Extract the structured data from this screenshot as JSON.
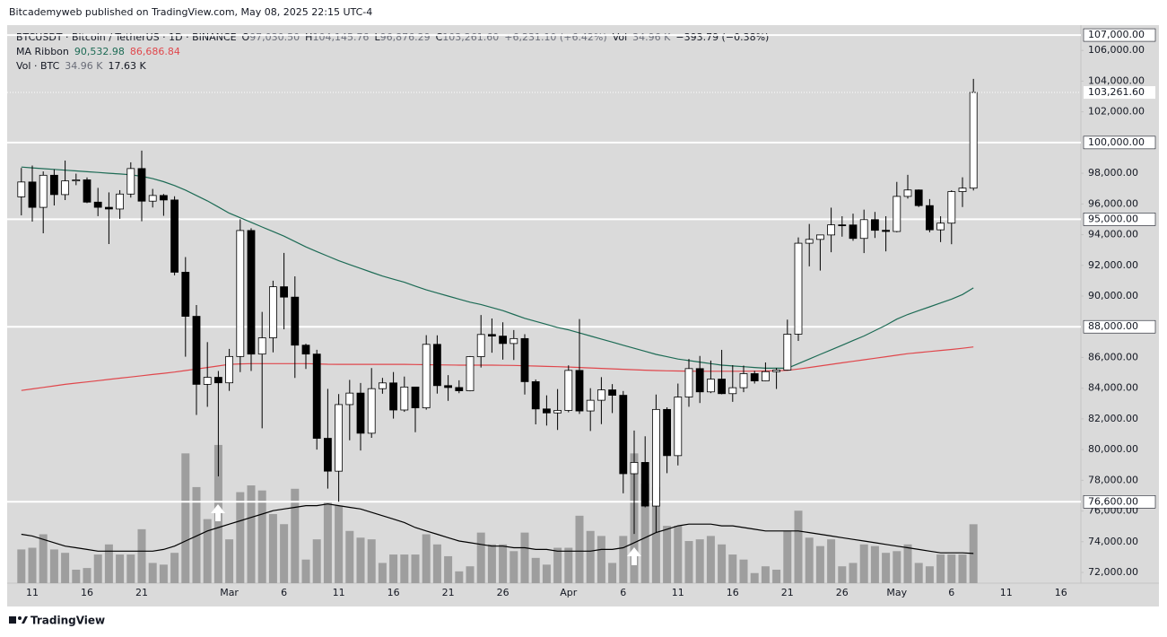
{
  "header": {
    "publisher": "Bitcademyweb published on TradingView.com, May 08, 2025 22:15 UTC-4",
    "brand": "TradingView"
  },
  "chart_data": {
    "type": "candlestick",
    "legend": [
      [
        {
          "text": "BTCUSDT · Bitcoin / TetherUS · 1D · BINANCE",
          "color": "#131722"
        },
        {
          "text": "O",
          "color": "#131722"
        },
        {
          "text": "97,030.50",
          "color": "#6a6d78"
        },
        {
          "text": "H",
          "color": "#131722"
        },
        {
          "text": "104,145.76",
          "color": "#6a6d78"
        },
        {
          "text": "L",
          "color": "#131722"
        },
        {
          "text": "96,876.29",
          "color": "#6a6d78"
        },
        {
          "text": "C",
          "color": "#131722"
        },
        {
          "text": "103,261.60",
          "color": "#6a6d78"
        },
        {
          "text": "+6,231.10 (+6.42%)",
          "color": "#6a6d78"
        },
        {
          "text": "Vol",
          "color": "#131722"
        },
        {
          "text": "34.96 K",
          "color": "#6a6d78"
        },
        {
          "text": "−393.79 (−0.38%)",
          "color": "#131722"
        }
      ],
      [
        {
          "text": "MA Ribbon",
          "color": "#131722"
        },
        {
          "text": "90,532.98",
          "color": "#1d6b55"
        },
        {
          "text": "86,686.84",
          "color": "#e0474c"
        }
      ],
      [
        {
          "text": "Vol · BTC",
          "color": "#131722"
        },
        {
          "text": "34.96 K",
          "color": "#6a6d78"
        },
        {
          "text": "17.63 K",
          "color": "#131722"
        }
      ]
    ],
    "categories": [
      null,
      "11",
      null,
      null,
      null,
      null,
      "16",
      null,
      null,
      null,
      null,
      "21",
      null,
      null,
      null,
      null,
      null,
      null,
      null,
      "Mar",
      null,
      null,
      null,
      null,
      "6",
      null,
      null,
      null,
      null,
      "11",
      null,
      null,
      null,
      null,
      "16",
      null,
      null,
      null,
      null,
      "21",
      null,
      null,
      null,
      null,
      "26",
      null,
      null,
      null,
      null,
      null,
      "Apr",
      null,
      null,
      null,
      null,
      "6",
      null,
      null,
      null,
      null,
      "11",
      null,
      null,
      null,
      null,
      "16",
      null,
      null,
      null,
      null,
      "21",
      null,
      null,
      null,
      null,
      "26",
      null,
      null,
      null,
      null,
      "May",
      null,
      null,
      null,
      null,
      "6",
      null,
      null,
      null,
      null,
      "11",
      null,
      null,
      null,
      null,
      "16",
      null
    ],
    "open": [
      96462,
      97430,
      95778,
      97869,
      96608,
      97500,
      97569,
      96118,
      95780,
      95671,
      96644,
      98305,
      96181,
      96551,
      96258,
      91552,
      88680,
      84250,
      84708,
      84349,
      86064,
      94270,
      86221,
      87281,
      90606,
      89931,
      86801,
      86222,
      80735,
      78595,
      82932,
      83681,
      81066,
      83969,
      84343,
      82579,
      84076,
      82719,
      86855,
      84167,
      84043,
      83832,
      86054,
      87498,
      87392,
      86909,
      87232,
      84424,
      82648,
      82389,
      82550,
      85158,
      82516,
      83214,
      83890,
      83537,
      78430,
      79164,
      76322,
      82615,
      79607,
      83423,
      85276,
      83760,
      84592,
      83643,
      84031,
      84947,
      84474,
      85077,
      85180,
      87517,
      93442,
      93691,
      93980,
      94638,
      94631,
      93755,
      94980,
      94284,
      94207,
      96492,
      96910,
      95891,
      94315,
      94749,
      96803,
      97030.5,
      null,
      null,
      null,
      null,
      null,
      null,
      null,
      null,
      null
    ],
    "high": [
      98345,
      98500,
      98119,
      98249,
      98826,
      97972,
      97725,
      97046,
      96753,
      96899,
      98711,
      99475,
      96980,
      96650,
      96500,
      92540,
      89414,
      87000,
      85120,
      86558,
      95000,
      94416,
      88968,
      91000,
      92810,
      91283,
      86897,
      86500,
      83955,
      83617,
      84539,
      84336,
      85310,
      84672,
      85051,
      84757,
      84076,
      87453,
      87443,
      84850,
      84513,
      86094,
      88765,
      88540,
      88292,
      87786,
      87515,
      84568,
      83534,
      83943,
      85487,
      88500,
      83999,
      84720,
      84266,
      83817,
      81243,
      80867,
      83588,
      82753,
      84300,
      85905,
      86100,
      85799,
      86496,
      85500,
      85470,
      85132,
      85677,
      85320,
      88465,
      93817,
      94696,
      94000,
      95758,
      95199,
      95369,
      95630,
      95480,
      95200,
      97437,
      97895,
      96943,
      96318,
      95199,
      96888,
      97732,
      104145.76,
      null,
      null,
      null,
      null,
      null,
      null,
      null,
      null,
      null
    ],
    "low": [
      95256,
      94850,
      94088,
      95900,
      96252,
      97223,
      96055,
      95205,
      93388,
      95029,
      96415,
      94871,
      95770,
      95227,
      91350,
      86050,
      82256,
      82786,
      78258,
      83824,
      85050,
      85117,
      81390,
      86334,
      87836,
      84667,
      85248,
      80000,
      77459,
      76606,
      80607,
      79939,
      80766,
      83639,
      82018,
      82457,
      81134,
      82600,
      83647,
      83175,
      83674,
      83795,
      85346,
      86310,
      85861,
      85837,
      83585,
      81644,
      81565,
      81279,
      82429,
      82320,
      81211,
      81659,
      82379,
      77153,
      74508,
      76239,
      74620,
      78464,
      78969,
      82792,
      83034,
      83678,
      83600,
      83111,
      83736,
      84303,
      84446,
      83949,
      85145,
      87076,
      91935,
      91660,
      92855,
      93870,
      93602,
      92800,
      93784,
      92910,
      94153,
      96350,
      95800,
      94153,
      93514,
      93377,
      95800,
      96876.29,
      null,
      null,
      null,
      null,
      null,
      null,
      null,
      null,
      null
    ],
    "close": [
      97430,
      95778,
      97869,
      96608,
      97500,
      97569,
      96118,
      95780,
      95671,
      96644,
      98305,
      96181,
      96551,
      96258,
      91552,
      88680,
      84250,
      84708,
      84349,
      86064,
      94270,
      86220,
      87281,
      90606,
      89931,
      86802,
      86222,
      80734,
      78595,
      82932,
      83680,
      81066,
      83969,
      84343,
      82579,
      84076,
      82719,
      86855,
      84167,
      84043,
      83832,
      86054,
      87498,
      87392,
      86909,
      87232,
      84424,
      82648,
      82389,
      82550,
      85158,
      82516,
      83213,
      83889,
      83537,
      78430,
      79164,
      76323,
      82615,
      79607,
      83423,
      85276,
      83760,
      84591,
      83643,
      84030,
      84947,
      84474,
      85077,
      85180,
      87516,
      93442,
      93691,
      93980,
      94638,
      94630,
      93754,
      94979,
      94284,
      94207,
      96492,
      96910,
      95891,
      94315,
      94749,
      96803,
      97030,
      103261.6,
      null,
      null,
      null,
      null,
      null,
      null,
      null,
      null,
      null
    ],
    "volume": [
      20,
      21,
      29,
      20,
      18,
      8,
      9,
      17,
      23,
      17,
      17,
      32,
      12,
      11,
      18,
      77,
      57,
      38,
      82,
      26,
      54,
      58,
      55,
      41,
      35,
      56,
      14,
      26,
      48,
      46,
      31,
      27,
      26,
      12,
      17,
      17,
      17,
      29,
      23,
      16,
      7,
      10,
      30,
      23,
      23,
      19,
      30,
      15,
      11,
      21,
      21,
      40,
      31,
      28,
      12,
      28,
      77,
      59,
      57,
      34,
      34,
      25,
      26,
      28,
      23,
      17,
      14,
      6,
      10,
      8,
      31,
      43,
      27,
      22,
      26,
      10,
      12,
      23,
      22,
      18,
      19,
      23,
      12,
      10,
      17,
      17,
      17,
      34.96,
      null,
      null,
      null,
      null,
      null,
      null,
      null,
      null,
      null
    ],
    "volume_ma": {
      "color": "#000000",
      "values": [
        29,
        28,
        26,
        24,
        22,
        21,
        20,
        19,
        19,
        19,
        19,
        19,
        19,
        20,
        22,
        25,
        28,
        31,
        33,
        35,
        37,
        39,
        41,
        43,
        44,
        45,
        46,
        46,
        47,
        46,
        45,
        44,
        42,
        40,
        38,
        36,
        33,
        31,
        29,
        27,
        25,
        24,
        23,
        22,
        22,
        21,
        21,
        20,
        20,
        19,
        19,
        19,
        19,
        20,
        20,
        21,
        24,
        27,
        30,
        32,
        34,
        35,
        35,
        35,
        34,
        34,
        33,
        32,
        31,
        31,
        31,
        31,
        30,
        29,
        28,
        27,
        26,
        25,
        24,
        23,
        22,
        21,
        20,
        19,
        18,
        18,
        18,
        17.63,
        null,
        null,
        null,
        null,
        null,
        null,
        null,
        null,
        null
      ]
    },
    "ma_lines": [
      {
        "color": "#1d6b55",
        "values": [
          98400,
          98350,
          98300,
          98250,
          98200,
          98150,
          98100,
          98050,
          98000,
          97950,
          97900,
          97800,
          97650,
          97450,
          97200,
          96900,
          96550,
          96200,
          95800,
          95400,
          95100,
          94800,
          94500,
          94200,
          93900,
          93550,
          93200,
          92900,
          92600,
          92300,
          92050,
          91800,
          91550,
          91300,
          91100,
          90900,
          90650,
          90400,
          90200,
          90000,
          89800,
          89600,
          89450,
          89250,
          89050,
          88800,
          88550,
          88350,
          88150,
          87950,
          87800,
          87600,
          87400,
          87200,
          87000,
          86800,
          86600,
          86400,
          86200,
          86050,
          85900,
          85800,
          85700,
          85600,
          85500,
          85450,
          85400,
          85350,
          85300,
          85300,
          85300,
          85600,
          85900,
          86200,
          86500,
          86800,
          87100,
          87400,
          87750,
          88100,
          88500,
          88800,
          89050,
          89300,
          89550,
          89800,
          90100,
          90532.98,
          null,
          null,
          null,
          null,
          null,
          null,
          null,
          null,
          null
        ]
      },
      {
        "color": "#e0474c",
        "values": [
          83850,
          83950,
          84050,
          84150,
          84250,
          84330,
          84410,
          84490,
          84570,
          84650,
          84730,
          84810,
          84890,
          84970,
          85050,
          85150,
          85250,
          85350,
          85450,
          85550,
          85580,
          85600,
          85600,
          85600,
          85600,
          85600,
          85600,
          85580,
          85560,
          85550,
          85550,
          85550,
          85550,
          85550,
          85550,
          85550,
          85540,
          85530,
          85520,
          85510,
          85500,
          85500,
          85500,
          85500,
          85490,
          85480,
          85460,
          85440,
          85420,
          85400,
          85380,
          85350,
          85320,
          85290,
          85260,
          85230,
          85200,
          85170,
          85150,
          85130,
          85120,
          85110,
          85100,
          85100,
          85100,
          85100,
          85100,
          85110,
          85120,
          85140,
          85160,
          85250,
          85350,
          85450,
          85550,
          85650,
          85750,
          85850,
          85950,
          86050,
          86150,
          86250,
          86320,
          86390,
          86460,
          86520,
          86600,
          86686.84,
          null,
          null,
          null,
          null,
          null,
          null,
          null,
          null,
          null
        ]
      }
    ],
    "up_color": "#ffffff",
    "down_color": "#000000",
    "wick_color": "#000000",
    "volume_color": "#9e9e9e",
    "ylim": [
      71300,
      107530
    ],
    "volume_ylim": [
      0,
      330
    ],
    "yticks": [
      {
        "value": 72000,
        "label": "72,000.00"
      },
      {
        "value": 74000,
        "label": "74,000.00"
      },
      {
        "value": 76000,
        "label": "76,000.00"
      },
      {
        "value": 78000,
        "label": "78,000.00"
      },
      {
        "value": 80000,
        "label": "80,000.00"
      },
      {
        "value": 82000,
        "label": "82,000.00"
      },
      {
        "value": 84000,
        "label": "84,000.00"
      },
      {
        "value": 86000,
        "label": "86,000.00"
      },
      {
        "value": 90000,
        "label": "90,000.00"
      },
      {
        "value": 92000,
        "label": "92,000.00"
      },
      {
        "value": 94000,
        "label": "94,000.00"
      },
      {
        "value": 96000,
        "label": "96,000.00"
      },
      {
        "value": 98000,
        "label": "98,000.00"
      },
      {
        "value": 102000,
        "label": "102,000.00"
      },
      {
        "value": 104000,
        "label": "104,000.00"
      },
      {
        "value": 106000,
        "label": "106,000.00"
      }
    ],
    "levels": [
      {
        "value": 107000,
        "label": "107,000.00"
      },
      {
        "value": 100000,
        "label": "100,000.00"
      },
      {
        "value": 95000,
        "label": "95,000.00"
      },
      {
        "value": 88000,
        "label": "88,000.00"
      },
      {
        "value": 76600,
        "label": "76,600.00"
      }
    ],
    "last_price_label": "103,261.60",
    "grid": false
  }
}
